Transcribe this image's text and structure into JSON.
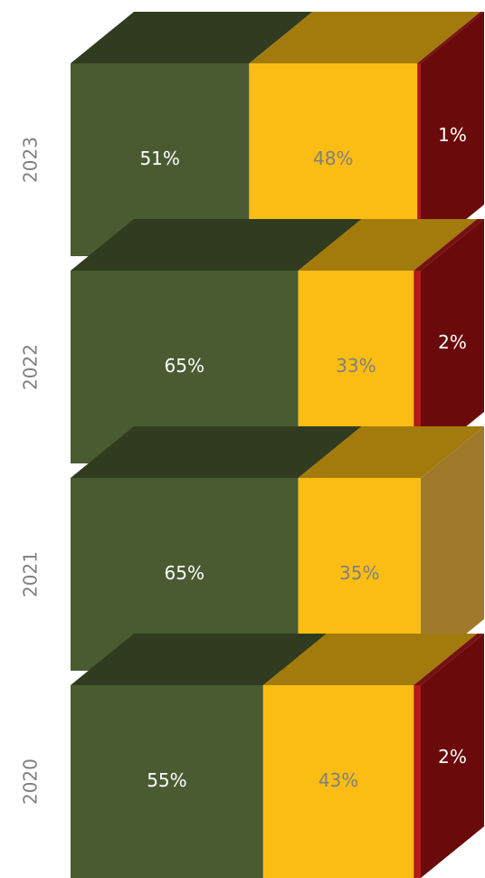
{
  "chart_data": {
    "type": "bar3d_stacked_horizontal",
    "categories": [
      "2023",
      "2022",
      "2021",
      "2020"
    ],
    "xlim": [
      0,
      100
    ],
    "series": [
      {
        "color": "#4a5b31",
        "values": [
          51,
          65,
          65,
          55
        ],
        "value_labels": [
          "51%",
          "65%",
          "65%",
          "55%"
        ]
      },
      {
        "color": "#fbbd13",
        "values": [
          48,
          33,
          35,
          43
        ],
        "value_labels": [
          "48%",
          "33%",
          "35%",
          "43%"
        ]
      },
      {
        "color": "#b51a1a",
        "values": [
          1,
          2,
          null,
          2
        ],
        "value_labels": [
          "1%",
          "2%",
          null,
          "2%"
        ]
      }
    ]
  }
}
